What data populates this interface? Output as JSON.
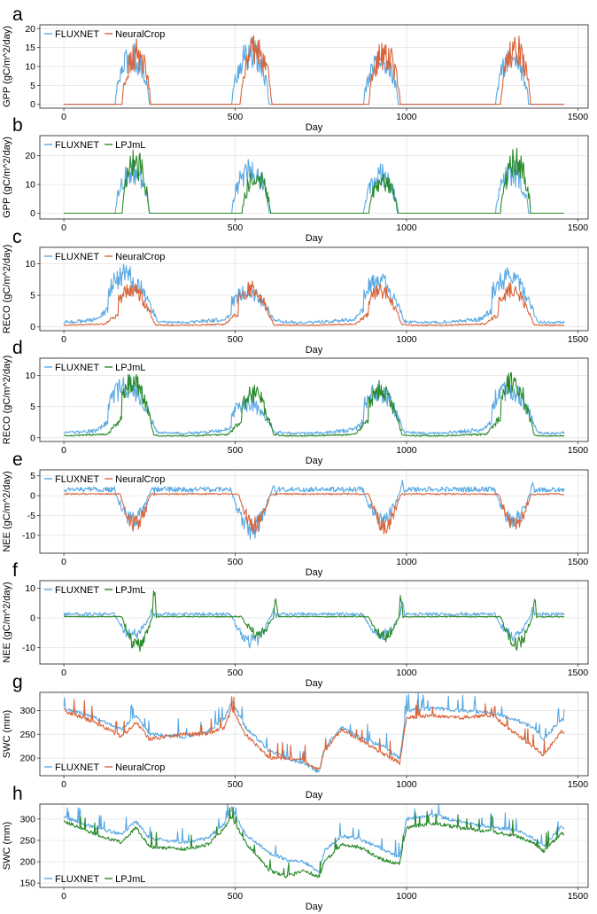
{
  "figure": {
    "colors": {
      "fluxnet": "#5aa9e3",
      "neuralcrop": "#d9643a",
      "lpjml": "#2a8a2a"
    }
  },
  "chart_data": [
    {
      "type": "line",
      "panel": "a",
      "xlabel": "Day",
      "ylabel": "GPP (gC/m^2/day)",
      "xlim": [
        -70,
        1530
      ],
      "ylim": [
        -1,
        21
      ],
      "xticks": [
        0,
        500,
        1000,
        1500
      ],
      "yticks": [
        0,
        5,
        10,
        15,
        20
      ],
      "legend": {
        "placement": "top-left"
      },
      "series": [
        {
          "name": "FLUXNET",
          "color": "#5aa9e3",
          "kind": "gpp",
          "seasons": [
            [
              150,
              265,
              15
            ],
            [
              490,
              615,
              16
            ],
            [
              875,
              990,
              14.5
            ],
            [
              1260,
              1370,
              15
            ]
          ]
        },
        {
          "name": "NeuralCrop",
          "color": "#d9643a",
          "kind": "gpp",
          "seasons": [
            [
              170,
              265,
              16.5
            ],
            [
              515,
              620,
              17
            ],
            [
              890,
              995,
              16
            ],
            [
              1275,
              1375,
              17
            ]
          ]
        }
      ]
    },
    {
      "type": "line",
      "panel": "b",
      "xlabel": "Day",
      "ylabel": "GPP (gC/m^2/day)",
      "xlim": [
        -70,
        1530
      ],
      "ylim": [
        -2,
        27
      ],
      "xticks": [
        0,
        500,
        1000,
        1500
      ],
      "yticks": [
        0,
        10,
        20
      ],
      "legend": {
        "placement": "top-left"
      },
      "series": [
        {
          "name": "FLUXNET",
          "color": "#5aa9e3",
          "kind": "gpp",
          "seasons": [
            [
              150,
              265,
              17
            ],
            [
              490,
              615,
              18
            ],
            [
              875,
              990,
              16
            ],
            [
              1260,
              1370,
              17
            ]
          ]
        },
        {
          "name": "LPJmL",
          "color": "#2a8a2a",
          "kind": "gpp",
          "seasons": [
            [
              170,
              260,
              21
            ],
            [
              520,
              615,
              15
            ],
            [
              890,
              985,
              14
            ],
            [
              1275,
              1375,
              21
            ]
          ]
        }
      ]
    },
    {
      "type": "line",
      "panel": "c",
      "xlabel": "Day",
      "ylabel": "RECO (gC/m^2/day)",
      "xlim": [
        -70,
        1530
      ],
      "ylim": [
        -0.6,
        12.6
      ],
      "xticks": [
        0,
        500,
        1000,
        1500
      ],
      "yticks": [
        0,
        5,
        10
      ],
      "legend": {
        "placement": "top-left"
      },
      "series": [
        {
          "name": "FLUXNET",
          "color": "#5aa9e3",
          "kind": "reco",
          "base": 1.4,
          "seasons": [
            [
              130,
              280,
              9.5
            ],
            [
              490,
              625,
              6.5
            ],
            [
              875,
              1000,
              8.5
            ],
            [
              1250,
              1390,
              9
            ]
          ]
        },
        {
          "name": "NeuralCrop",
          "color": "#d9643a",
          "kind": "reco",
          "base": 0.5,
          "seasons": [
            [
              160,
              270,
              6.8
            ],
            [
              510,
              615,
              7
            ],
            [
              890,
              990,
              6.6
            ],
            [
              1270,
              1375,
              6.8
            ]
          ]
        }
      ]
    },
    {
      "type": "line",
      "panel": "d",
      "xlabel": "Day",
      "ylabel": "RECO (gC/m^2/day)",
      "xlim": [
        -70,
        1530
      ],
      "ylim": [
        -0.6,
        12.8
      ],
      "xticks": [
        0,
        500,
        1000,
        1500
      ],
      "yticks": [
        0,
        5,
        10
      ],
      "legend": {
        "placement": "top-left"
      },
      "series": [
        {
          "name": "FLUXNET",
          "color": "#5aa9e3",
          "kind": "reco",
          "base": 1.4,
          "seasons": [
            [
              130,
              280,
              9.5
            ],
            [
              490,
              625,
              6.5
            ],
            [
              875,
              1000,
              8.5
            ],
            [
              1250,
              1390,
              9
            ]
          ]
        },
        {
          "name": "LPJmL",
          "color": "#2a8a2a",
          "kind": "reco",
          "base": 0.6,
          "seasons": [
            [
              170,
              265,
              10.5
            ],
            [
              520,
              615,
              8.5
            ],
            [
              890,
              990,
              9
            ],
            [
              1275,
              1375,
              10.5
            ]
          ]
        }
      ]
    },
    {
      "type": "line",
      "panel": "e",
      "xlabel": "Day",
      "ylabel": "NEE (gC/m^2/day)",
      "xlim": [
        -70,
        1530
      ],
      "ylim": [
        -14.5,
        6.5
      ],
      "xticks": [
        0,
        500,
        1000,
        1500
      ],
      "yticks": [
        -10,
        -5,
        0,
        5
      ],
      "legend": {
        "placement": "top-left"
      },
      "series": [
        {
          "name": "FLUXNET",
          "color": "#5aa9e3",
          "kind": "nee",
          "base": 1.5,
          "seasons": [
            [
              150,
              265,
              -8.5,
              3
            ],
            [
              490,
              620,
              -11.5,
              3
            ],
            [
              875,
              995,
              -8.5,
              4
            ],
            [
              1260,
              1375,
              -9,
              4
            ]
          ]
        },
        {
          "name": "NeuralCrop",
          "color": "#d9643a",
          "kind": "nee",
          "base": 0.4,
          "seasons": [
            [
              165,
              265,
              -9.5,
              0.5
            ],
            [
              510,
              615,
              -9.5,
              0.5
            ],
            [
              890,
              995,
              -9.5,
              0.5
            ],
            [
              1270,
              1375,
              -9.5,
              0.5
            ]
          ]
        }
      ]
    },
    {
      "type": "line",
      "panel": "f",
      "xlabel": "Day",
      "ylabel": "NEE (gC/m^2/day)",
      "xlim": [
        -70,
        1530
      ],
      "ylim": [
        -15.5,
        12.5
      ],
      "xticks": [
        0,
        500,
        1000,
        1500
      ],
      "yticks": [
        -10,
        0,
        10
      ],
      "legend": {
        "placement": "top-left"
      },
      "series": [
        {
          "name": "FLUXNET",
          "color": "#5aa9e3",
          "kind": "nee",
          "base": 1.2,
          "seasons": [
            [
              150,
              265,
              -8,
              3
            ],
            [
              490,
              620,
              -11,
              3
            ],
            [
              875,
              995,
              -8,
              5
            ],
            [
              1260,
              1375,
              -8,
              4
            ]
          ]
        },
        {
          "name": "LPJmL",
          "color": "#2a8a2a",
          "kind": "nee",
          "base": 0.4,
          "seasons": [
            [
              170,
              270,
              -12,
              10
            ],
            [
              520,
              625,
              -7,
              8
            ],
            [
              890,
              990,
              -8,
              9
            ],
            [
              1275,
              1380,
              -11,
              7
            ]
          ]
        }
      ]
    },
    {
      "type": "line",
      "panel": "g",
      "xlabel": "Day",
      "ylabel": "SWC (mm)",
      "xlim": [
        -70,
        1530
      ],
      "ylim": [
        163,
        338
      ],
      "xticks": [
        0,
        500,
        1000,
        1500
      ],
      "yticks": [
        200,
        250,
        300
      ],
      "legend": {
        "placement": "bottom-left"
      },
      "series": [
        {
          "name": "FLUXNET",
          "color": "#5aa9e3",
          "kind": "swc",
          "anchors": [
            [
              0,
              305
            ],
            [
              90,
              285
            ],
            [
              170,
              260
            ],
            [
              210,
              290
            ],
            [
              250,
              250
            ],
            [
              350,
              245
            ],
            [
              420,
              255
            ],
            [
              470,
              285
            ],
            [
              490,
              320
            ],
            [
              530,
              265
            ],
            [
              600,
              215
            ],
            [
              650,
              200
            ],
            [
              700,
              190
            ],
            [
              745,
              170
            ],
            [
              760,
              220
            ],
            [
              810,
              265
            ],
            [
              860,
              245
            ],
            [
              930,
              225
            ],
            [
              980,
              200
            ],
            [
              1000,
              300
            ],
            [
              1080,
              305
            ],
            [
              1150,
              300
            ],
            [
              1250,
              295
            ],
            [
              1320,
              280
            ],
            [
              1370,
              265
            ],
            [
              1400,
              240
            ],
            [
              1450,
              280
            ]
          ]
        },
        {
          "name": "NeuralCrop",
          "color": "#d9643a",
          "kind": "swc",
          "anchors": [
            [
              0,
              300
            ],
            [
              90,
              275
            ],
            [
              170,
              245
            ],
            [
              210,
              275
            ],
            [
              250,
              240
            ],
            [
              350,
              250
            ],
            [
              420,
              250
            ],
            [
              470,
              265
            ],
            [
              490,
              305
            ],
            [
              530,
              250
            ],
            [
              600,
              200
            ],
            [
              650,
              200
            ],
            [
              700,
              195
            ],
            [
              745,
              175
            ],
            [
              760,
              215
            ],
            [
              810,
              260
            ],
            [
              860,
              240
            ],
            [
              930,
              210
            ],
            [
              980,
              190
            ],
            [
              1000,
              285
            ],
            [
              1080,
              290
            ],
            [
              1150,
              285
            ],
            [
              1250,
              290
            ],
            [
              1320,
              250
            ],
            [
              1370,
              225
            ],
            [
              1400,
              205
            ],
            [
              1450,
              255
            ]
          ]
        }
      ]
    },
    {
      "type": "line",
      "panel": "h",
      "xlabel": "Day",
      "ylabel": "SWC (mm)",
      "xlim": [
        -70,
        1530
      ],
      "ylim": [
        140,
        335
      ],
      "xticks": [
        0,
        500,
        1000,
        1500
      ],
      "yticks": [
        150,
        200,
        250,
        300
      ],
      "legend": {
        "placement": "bottom-left"
      },
      "series": [
        {
          "name": "FLUXNET",
          "color": "#5aa9e3",
          "kind": "swc",
          "anchors": [
            [
              0,
              305
            ],
            [
              90,
              280
            ],
            [
              170,
              265
            ],
            [
              210,
              295
            ],
            [
              250,
              255
            ],
            [
              350,
              245
            ],
            [
              420,
              255
            ],
            [
              470,
              290
            ],
            [
              490,
              325
            ],
            [
              530,
              265
            ],
            [
              600,
              220
            ],
            [
              650,
              205
            ],
            [
              700,
              200
            ],
            [
              745,
              175
            ],
            [
              760,
              225
            ],
            [
              810,
              260
            ],
            [
              860,
              255
            ],
            [
              930,
              230
            ],
            [
              980,
              210
            ],
            [
              1000,
              300
            ],
            [
              1080,
              310
            ],
            [
              1150,
              295
            ],
            [
              1250,
              280
            ],
            [
              1320,
              275
            ],
            [
              1370,
              255
            ],
            [
              1400,
              235
            ],
            [
              1450,
              280
            ]
          ]
        },
        {
          "name": "LPJmL",
          "color": "#2a8a2a",
          "kind": "swc",
          "anchors": [
            [
              0,
              295
            ],
            [
              90,
              265
            ],
            [
              170,
              245
            ],
            [
              210,
              280
            ],
            [
              250,
              235
            ],
            [
              350,
              230
            ],
            [
              420,
              240
            ],
            [
              470,
              280
            ],
            [
              490,
              305
            ],
            [
              530,
              245
            ],
            [
              600,
              180
            ],
            [
              650,
              165
            ],
            [
              700,
              180
            ],
            [
              745,
              165
            ],
            [
              760,
              200
            ],
            [
              810,
              240
            ],
            [
              860,
              235
            ],
            [
              930,
              205
            ],
            [
              980,
              195
            ],
            [
              1000,
              280
            ],
            [
              1080,
              290
            ],
            [
              1150,
              280
            ],
            [
              1250,
              270
            ],
            [
              1320,
              260
            ],
            [
              1370,
              245
            ],
            [
              1400,
              225
            ],
            [
              1450,
              265
            ]
          ]
        }
      ]
    }
  ]
}
